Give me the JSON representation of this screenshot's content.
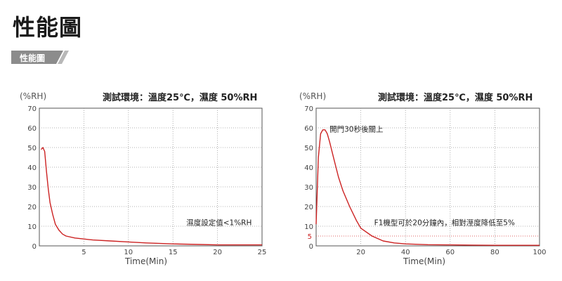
{
  "page_title": "性能圖",
  "section_tab": "性能圖",
  "colors": {
    "curve": "#cc2222",
    "grid": "#9a9a9a",
    "tab": "#8c8c8c",
    "threshold": "#dd6666"
  },
  "chart_data": [
    {
      "type": "line",
      "title": "測試環境：溫度25℃，濕度 50%RH",
      "ylabel": "(%RH)",
      "xlabel": "Time(Min)",
      "xlim": [
        0,
        25
      ],
      "ylim": [
        0,
        70
      ],
      "xticks": [
        5,
        10,
        15,
        20,
        25
      ],
      "yticks": [
        0,
        10,
        20,
        30,
        40,
        50,
        60,
        70
      ],
      "grid": true,
      "annotation": {
        "text": "濕度設定值<1%RH",
        "x": 16.5,
        "y": 10.5
      },
      "series": [
        {
          "x": [
            0.2,
            0.4,
            0.6,
            0.8,
            1.0,
            1.2,
            1.5,
            1.8,
            2.2,
            2.6,
            3.0,
            4,
            5,
            6,
            8,
            10,
            12,
            15,
            18,
            20,
            22,
            25
          ],
          "y": [
            49,
            50,
            48,
            38,
            29,
            22,
            16,
            11,
            8,
            6,
            5,
            4,
            3.5,
            3,
            2.5,
            2,
            1.5,
            1,
            0.7,
            0.5,
            0.5,
            0.5
          ]
        }
      ]
    },
    {
      "type": "line",
      "title": "測試環境：溫度25℃，濕度 50%RH",
      "ylabel": "(%RH)",
      "xlabel": "Time(Min)",
      "xlim": [
        0,
        100
      ],
      "ylim": [
        0,
        70
      ],
      "xticks": [
        20,
        40,
        60,
        80,
        100
      ],
      "yticks": [
        0,
        10,
        20,
        30,
        40,
        50,
        60,
        70
      ],
      "extra_ytick": {
        "value": 5,
        "label": "5"
      },
      "grid": true,
      "threshold_line": 5,
      "annotations": [
        {
          "text": "開門30秒後關上",
          "x": 6,
          "y": 58
        },
        {
          "text": "F1機型可於20分鐘內，相對溼度降低至5%",
          "x": 26,
          "y": 10.5
        }
      ],
      "series": [
        {
          "x": [
            0,
            0.5,
            1,
            2,
            3,
            4,
            5,
            6,
            8,
            10,
            12,
            15,
            18,
            20,
            25,
            30,
            35,
            40,
            50,
            60,
            70,
            80,
            100
          ],
          "y": [
            11,
            28,
            45,
            57,
            59,
            59,
            57,
            53,
            44,
            35,
            28,
            20,
            13,
            9,
            5,
            2.5,
            1.5,
            1,
            0.6,
            0.5,
            0.4,
            0.3,
            0.3
          ]
        }
      ]
    }
  ]
}
